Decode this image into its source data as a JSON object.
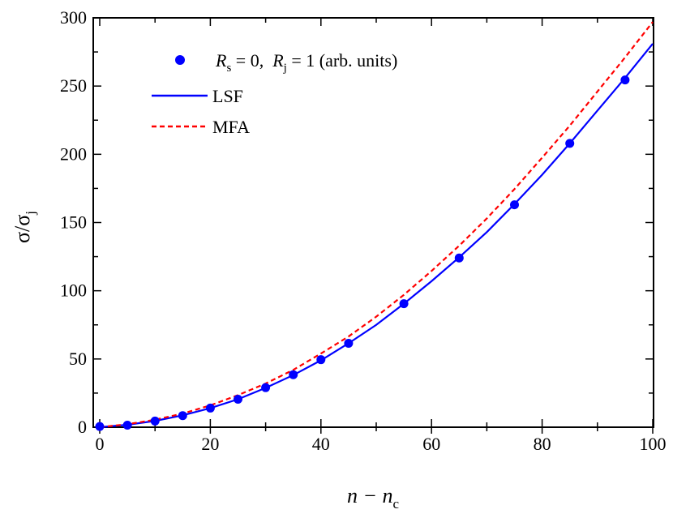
{
  "chart_data": {
    "type": "line",
    "xlabel": {
      "main": "n − n",
      "sub": "c"
    },
    "ylabel": {
      "main": "σ/σ",
      "sub": "j"
    },
    "xlim": [
      0,
      100
    ],
    "ylim": [
      0,
      300
    ],
    "xticks": [
      "0",
      "20",
      "40",
      "60",
      "80",
      "100"
    ],
    "yticks": [
      "0",
      "50",
      "100",
      "150",
      "200",
      "250",
      "300"
    ],
    "grid": false,
    "legend_position": "top-left",
    "legend": {
      "points_label": {
        "r1": "R",
        "s1": "s",
        "mid": " = 0,  ",
        "r2": "R",
        "s2": "j",
        "end": " = 1 (arb. units)"
      },
      "lsf_label": "LSF",
      "mfa_label": "MFA"
    },
    "series": [
      {
        "name": "R_s = 0, R_j = 1 (arb. units)",
        "kind": "scatter",
        "color": "#0000ff",
        "x": [
          0,
          5,
          10,
          15,
          20,
          25,
          30,
          35,
          40,
          45,
          55,
          65,
          75,
          85,
          95
        ],
        "y": [
          0.5,
          1.5,
          4.5,
          8.5,
          14,
          20.5,
          29,
          38.5,
          49.5,
          61.5,
          90.5,
          124,
          163,
          208,
          254.5
        ]
      },
      {
        "name": "LSF",
        "kind": "line",
        "style": "solid",
        "color": "#0000ff",
        "x": [
          0,
          5,
          10,
          15,
          20,
          25,
          30,
          35,
          40,
          45,
          50,
          55,
          60,
          65,
          70,
          75,
          80,
          85,
          90,
          95,
          100
        ],
        "y": [
          0,
          1.8,
          4.6,
          8.7,
          14,
          20.5,
          28.8,
          38.2,
          49,
          61.5,
          75,
          90.5,
          107,
          124.5,
          143,
          163.5,
          185,
          208,
          232,
          256,
          281
        ]
      },
      {
        "name": "MFA",
        "kind": "line",
        "style": "dashed",
        "color": "#ff0000",
        "x": [
          0,
          5,
          10,
          15,
          20,
          25,
          30,
          35,
          40,
          45,
          50,
          55,
          60,
          65,
          70,
          75,
          80,
          85,
          90,
          95,
          100
        ],
        "y": [
          0,
          2.2,
          5.5,
          10,
          16,
          23.5,
          32,
          42,
          54,
          66.5,
          81,
          97,
          114.5,
          133,
          153,
          174.5,
          197.5,
          221,
          246,
          271,
          297
        ]
      }
    ]
  }
}
